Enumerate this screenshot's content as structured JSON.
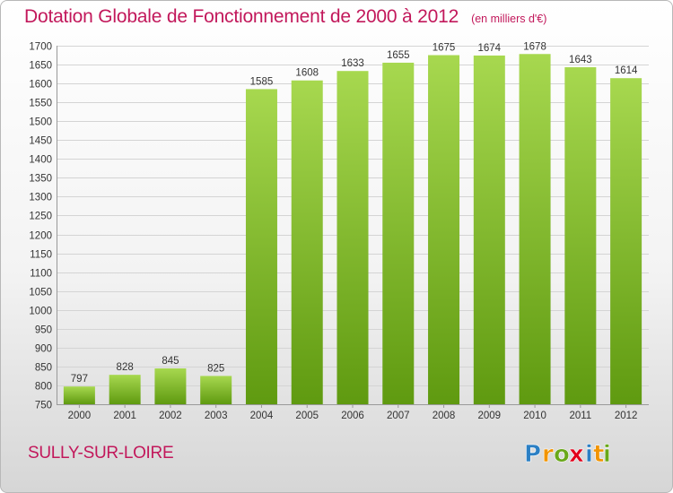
{
  "title": "Dotation Globale de Fonctionnement de 2000 à 2012",
  "unit_label": "(en milliers d'€)",
  "commune": "SULLY-SUR-LOIRE",
  "logo": {
    "letters": [
      "P",
      "r",
      "o",
      "x",
      "i",
      "t",
      "i"
    ],
    "colors": [
      "#2b7fc4",
      "#f29400",
      "#69a81a",
      "#e2001a",
      "#2b7fc4",
      "#f29400",
      "#69a81a"
    ]
  },
  "colors": {
    "title": "#c2185b",
    "bar_top": "#a7d84f",
    "bar_bottom": "#5f9a10",
    "grid": "#d4d4d4"
  },
  "chart_data": {
    "type": "bar",
    "categories": [
      "2000",
      "2001",
      "2002",
      "2003",
      "2004",
      "2005",
      "2006",
      "2007",
      "2008",
      "2009",
      "2010",
      "2011",
      "2012"
    ],
    "values": [
      797,
      828,
      845,
      825,
      1585,
      1608,
      1633,
      1655,
      1675,
      1674,
      1678,
      1643,
      1614
    ],
    "ylim": [
      750,
      1700
    ],
    "yticks": [
      750,
      800,
      850,
      900,
      950,
      1000,
      1050,
      1100,
      1150,
      1200,
      1250,
      1300,
      1350,
      1400,
      1450,
      1500,
      1550,
      1600,
      1650,
      1700
    ],
    "grid": true
  }
}
